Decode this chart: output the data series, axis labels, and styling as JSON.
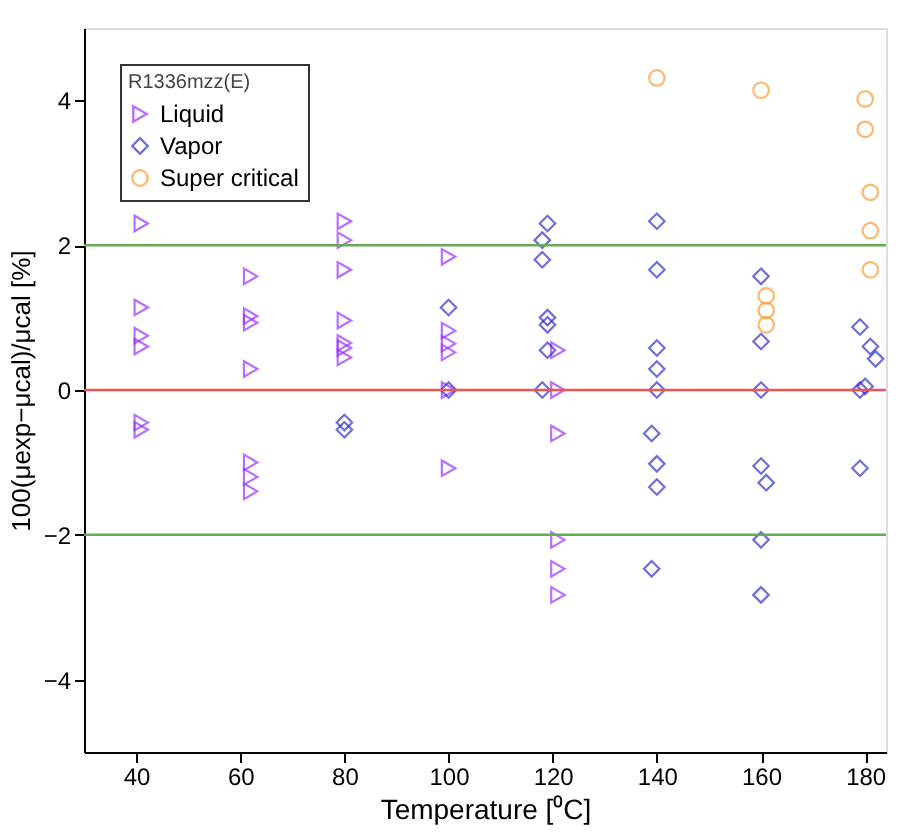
{
  "chart_data": {
    "type": "scatter",
    "legend_title": "R1336mzz(E)",
    "xlabel": "Temperature [⁰C]",
    "ylabel": "100(μexp−μcal)/μcal [%]",
    "xlim": [
      30,
      184
    ],
    "xticks": [
      40,
      60,
      80,
      100,
      120,
      140,
      160,
      180
    ],
    "ylim": [
      -5,
      5
    ],
    "yticks": [
      -4,
      -2,
      0,
      2,
      4
    ],
    "grid": false,
    "legend": "top left",
    "series": [
      {
        "name": "Liquid",
        "color": "#9933ff",
        "marker": "triangle",
        "x": [
          41,
          41,
          41,
          41,
          41,
          41,
          62,
          62,
          62,
          62,
          62,
          62,
          62,
          80,
          80,
          80,
          80,
          80,
          80,
          80,
          100,
          100,
          100,
          100,
          100,
          100,
          121,
          121,
          121,
          121,
          121,
          121
        ],
        "values": [
          2.3,
          1.14,
          0.75,
          0.6,
          -0.45,
          -0.55,
          1.57,
          1.02,
          0.93,
          0.29,
          -1.0,
          -1.2,
          -1.4,
          2.33,
          2.07,
          1.66,
          0.96,
          0.65,
          0.58,
          0.45,
          1.84,
          0.82,
          0.64,
          0.52,
          0.0,
          -1.08,
          0.55,
          0.0,
          -0.6,
          -2.07,
          -2.47,
          -2.83
        ]
      },
      {
        "name": "Vapor",
        "color": "#3333cc",
        "marker": "diamond",
        "x": [
          80,
          80,
          100,
          100,
          119,
          118,
          118,
          119,
          119,
          119,
          118,
          140,
          140,
          140,
          140,
          140,
          139,
          140,
          140,
          139,
          160,
          160,
          160,
          160,
          161,
          160,
          160,
          179,
          181,
          182,
          179,
          180,
          179
        ],
        "values": [
          -0.45,
          -0.55,
          1.14,
          0.0,
          2.3,
          2.07,
          1.8,
          1.0,
          0.9,
          0.55,
          0.0,
          2.33,
          1.66,
          0.58,
          0.29,
          0.0,
          -0.6,
          -1.02,
          -1.34,
          -2.47,
          1.57,
          0.67,
          0.0,
          -1.05,
          -1.28,
          -2.07,
          -2.83,
          0.87,
          0.6,
          0.43,
          0.0,
          0.05,
          -1.08
        ]
      },
      {
        "name": "Super critical",
        "color": "#ff9933",
        "marker": "circle",
        "x": [
          140,
          160,
          161,
          161,
          161,
          180,
          180,
          181,
          181,
          181
        ],
        "values": [
          4.31,
          4.14,
          1.3,
          1.1,
          0.9,
          4.02,
          3.6,
          2.73,
          2.2,
          1.66
        ]
      }
    ],
    "ref_lines": [
      {
        "axis": "y",
        "value": 2,
        "color": "#66aa55"
      },
      {
        "axis": "y",
        "value": 0,
        "color": "#ee5555"
      },
      {
        "axis": "y",
        "value": -2,
        "color": "#66aa55"
      }
    ]
  }
}
